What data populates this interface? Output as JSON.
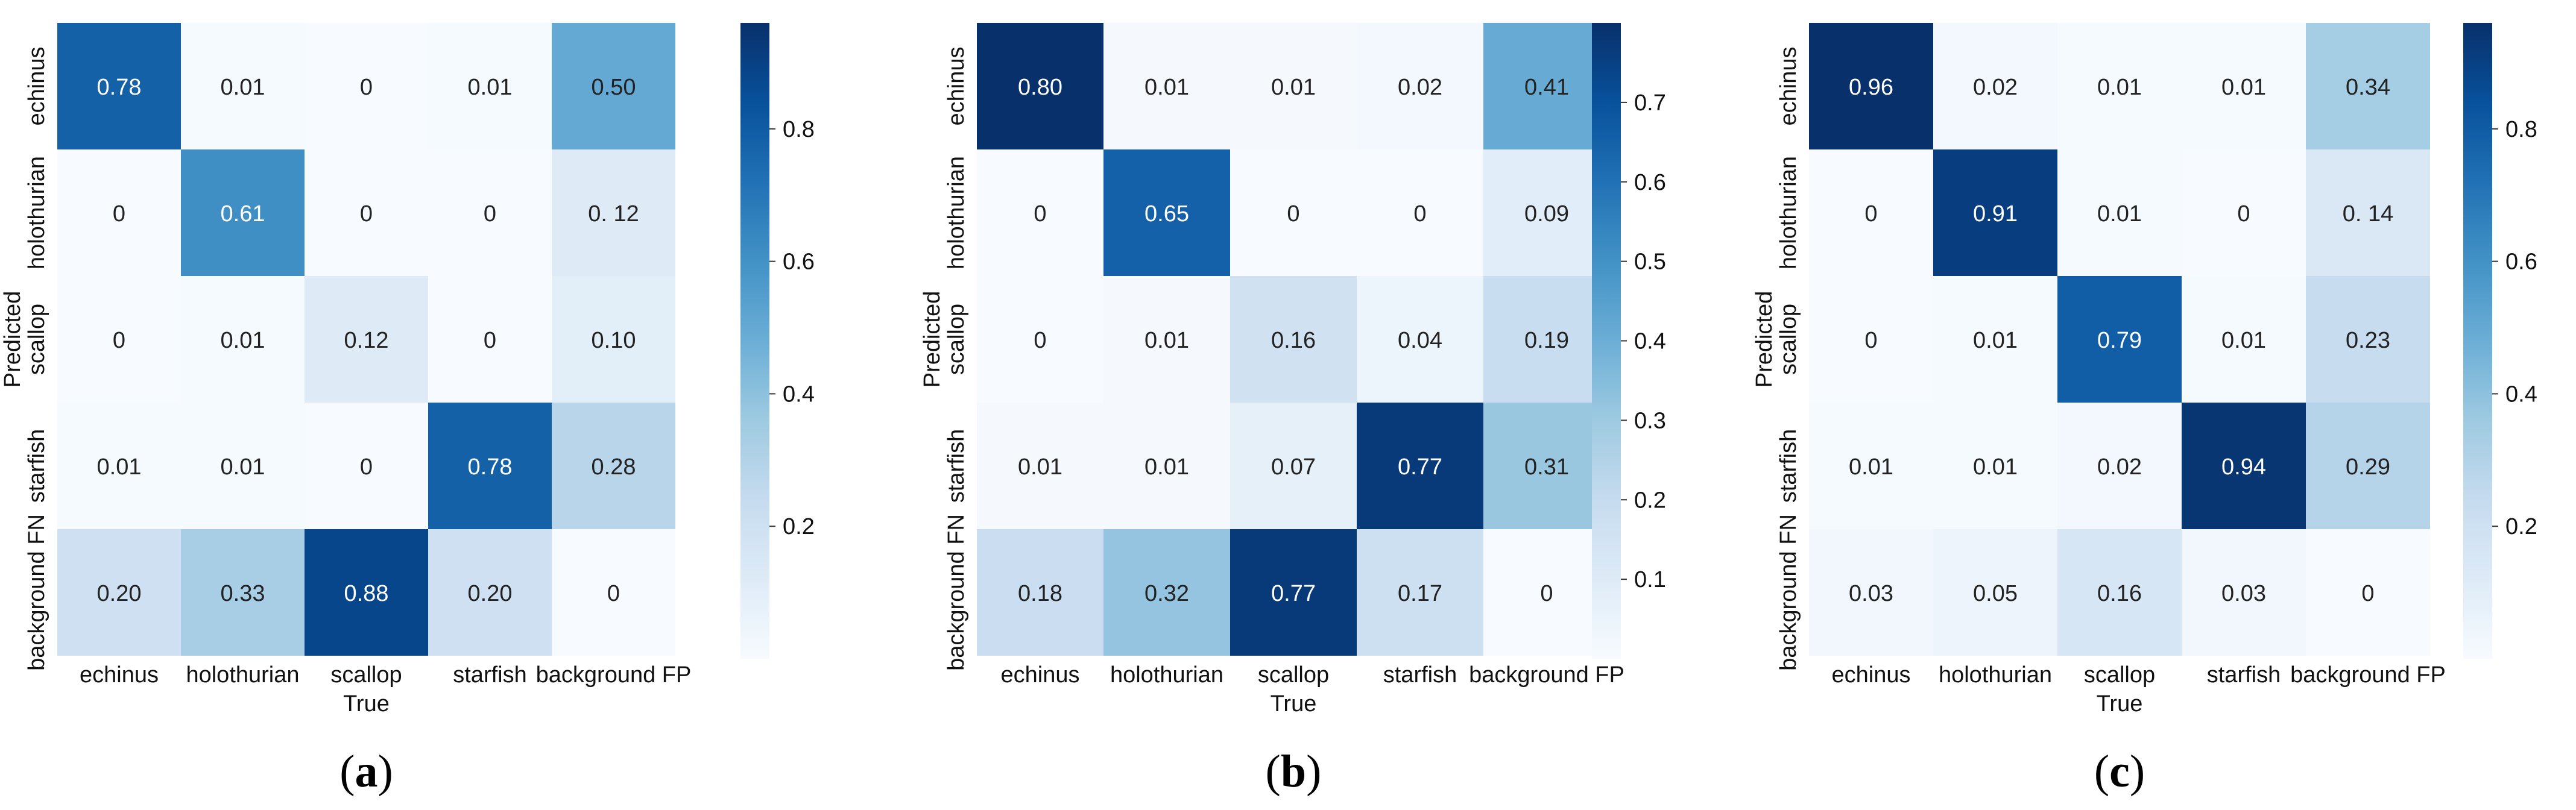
{
  "chart_data": [
    {
      "type": "heatmap",
      "caption": "(a)",
      "caption_letter": "a",
      "xlabel": "True",
      "ylabel": "Predicted",
      "x_categories": [
        "echinus",
        "holothurian",
        "scallop",
        "starfish",
        "background FP"
      ],
      "y_categories": [
        "echinus",
        "holothurian",
        "scallop",
        "starfish",
        "background FN"
      ],
      "values": [
        [
          0.78,
          0.01,
          0,
          0.01,
          0.5
        ],
        [
          0,
          0.61,
          0,
          0,
          0.12
        ],
        [
          0,
          0.01,
          0.12,
          0,
          0.1
        ],
        [
          0.01,
          0.01,
          0,
          0.78,
          0.28
        ],
        [
          0.2,
          0.33,
          0.88,
          0.2,
          0
        ]
      ],
      "labels": [
        [
          "0.78",
          "0.01",
          "0",
          "0.01",
          "0.50"
        ],
        [
          "0",
          "0.61",
          "0",
          "0",
          "0. 12"
        ],
        [
          "0",
          "0.01",
          "0.12",
          "0",
          "0.10"
        ],
        [
          "0.01",
          "0.01",
          "0",
          "0.78",
          "0.28"
        ],
        [
          "0.20",
          "0.33",
          "0.88",
          "0.20",
          "0"
        ]
      ],
      "colorbar": {
        "vmin": 0.0,
        "vmax": 0.96,
        "ticks": [
          0.2,
          0.4,
          0.6,
          0.8
        ],
        "tick_labels": [
          "0.2",
          "0.4",
          "0.6",
          "0.8"
        ]
      },
      "colormap": "Blues"
    },
    {
      "type": "heatmap",
      "caption": "(b)",
      "caption_letter": "b",
      "xlabel": "True",
      "ylabel": "Predicted",
      "x_categories": [
        "echinus",
        "holothurian",
        "scallop",
        "starfish",
        "background FP"
      ],
      "y_categories": [
        "echinus",
        "holothurian",
        "scallop",
        "starfish",
        "background FN"
      ],
      "values": [
        [
          0.8,
          0.01,
          0.01,
          0.02,
          0.41
        ],
        [
          0,
          0.65,
          0,
          0,
          0.09
        ],
        [
          0,
          0.01,
          0.16,
          0.04,
          0.19
        ],
        [
          0.01,
          0.01,
          0.07,
          0.77,
          0.31
        ],
        [
          0.18,
          0.32,
          0.77,
          0.17,
          0
        ]
      ],
      "labels": [
        [
          "0.80",
          "0.01",
          "0.01",
          "0.02",
          "0.41"
        ],
        [
          "0",
          "0.65",
          "0",
          "0",
          "0.09"
        ],
        [
          "0",
          "0.01",
          "0.16",
          "0.04",
          "0.19"
        ],
        [
          "0.01",
          "0.01",
          "0.07",
          "0.77",
          "0.31"
        ],
        [
          "0.18",
          "0.32",
          "0.77",
          "0.17",
          "0"
        ]
      ],
      "colorbar": {
        "vmin": 0.0,
        "vmax": 0.8,
        "ticks": [
          0.1,
          0.2,
          0.3,
          0.4,
          0.5,
          0.6,
          0.7
        ],
        "tick_labels": [
          "0.1",
          "0.2",
          "0.3",
          "0.4",
          "0.5",
          "0.6",
          "0.7"
        ]
      },
      "colormap": "Blues"
    },
    {
      "type": "heatmap",
      "caption": "(c)",
      "caption_letter": "c",
      "xlabel": "True",
      "ylabel": "Predicted",
      "x_categories": [
        "echinus",
        "holothurian",
        "scallop",
        "starfish",
        "background FP"
      ],
      "y_categories": [
        "echinus",
        "holothurian",
        "scallop",
        "starfish",
        "background FN"
      ],
      "values": [
        [
          0.96,
          0.02,
          0.01,
          0.01,
          0.34
        ],
        [
          0,
          0.91,
          0.01,
          0,
          0.14
        ],
        [
          0,
          0.01,
          0.79,
          0.01,
          0.23
        ],
        [
          0.01,
          0.01,
          0.02,
          0.94,
          0.29
        ],
        [
          0.03,
          0.05,
          0.16,
          0.03,
          0
        ]
      ],
      "labels": [
        [
          "0.96",
          "0.02",
          "0.01",
          "0.01",
          "0.34"
        ],
        [
          "0",
          "0.91",
          "0.01",
          "0",
          "0. 14"
        ],
        [
          "0",
          "0.01",
          "0.79",
          "0.01",
          "0.23"
        ],
        [
          "0.01",
          "0.01",
          "0.02",
          "0.94",
          "0.29"
        ],
        [
          "0.03",
          "0.05",
          "0.16",
          "0.03",
          "0"
        ]
      ],
      "colorbar": {
        "vmin": 0.0,
        "vmax": 0.96,
        "ticks": [
          0.2,
          0.4,
          0.6,
          0.8
        ],
        "tick_labels": [
          "0.2",
          "0.4",
          "0.6",
          "0.8"
        ]
      },
      "colormap": "Blues"
    }
  ]
}
